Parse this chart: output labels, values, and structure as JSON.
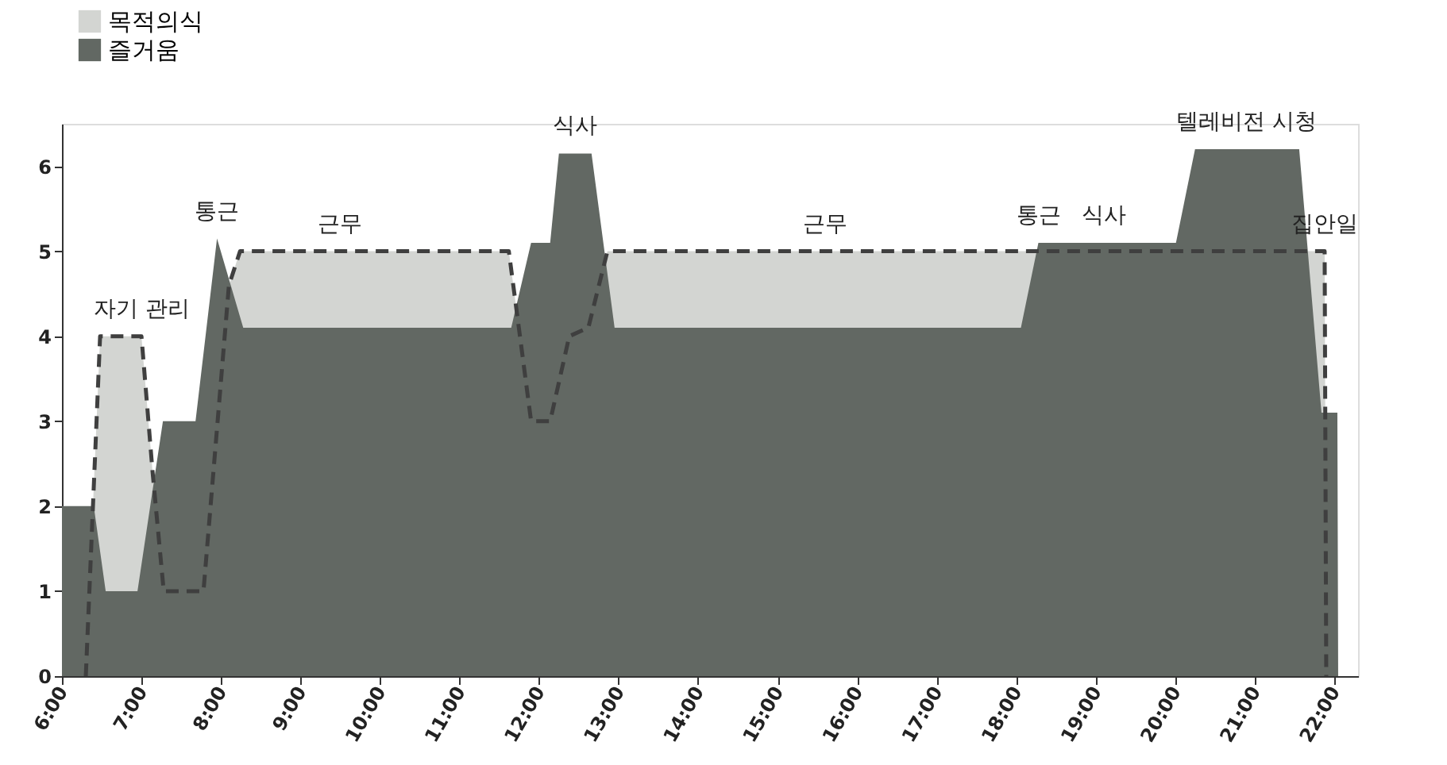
{
  "chart_data": {
    "type": "area",
    "legend": "top left",
    "grid": false,
    "marker": "none",
    "xlim": [
      6,
      22.3
    ],
    "ylim": [
      0,
      6.5
    ],
    "yticks": [
      0,
      1,
      2,
      3,
      4,
      5,
      6
    ],
    "xticks": [
      {
        "value": 6,
        "label": "6:00"
      },
      {
        "value": 7,
        "label": "7:00"
      },
      {
        "value": 8,
        "label": "8:00"
      },
      {
        "value": 9,
        "label": "9:00"
      },
      {
        "value": 10,
        "label": "10:00"
      },
      {
        "value": 11,
        "label": "11:00"
      },
      {
        "value": 12,
        "label": "12:00"
      },
      {
        "value": 13,
        "label": "13:00"
      },
      {
        "value": 14,
        "label": "14:00"
      },
      {
        "value": 15,
        "label": "15:00"
      },
      {
        "value": 16,
        "label": "16:00"
      },
      {
        "value": 17,
        "label": "17:00"
      },
      {
        "value": 18,
        "label": "18:00"
      },
      {
        "value": 19,
        "label": "19:00"
      },
      {
        "value": 20,
        "label": "20:00"
      },
      {
        "value": 21,
        "label": "21:00"
      },
      {
        "value": 22,
        "label": "22:00"
      }
    ],
    "series": [
      {
        "name": "목적의식",
        "color": "#d3d5d2",
        "line_style": "dashed",
        "x": [
          6.3,
          6.48,
          7.0,
          7.14,
          7.28,
          7.78,
          8.1,
          8.24,
          11.62,
          11.69,
          11.9,
          12.14,
          12.38,
          12.62,
          12.86,
          21.88,
          21.9
        ],
        "values": [
          0,
          4,
          4,
          2.4,
          1,
          1,
          4.6,
          5,
          5,
          4.5,
          3,
          3,
          4,
          4.1,
          5,
          5,
          0
        ]
      },
      {
        "name": "즐거움",
        "color": "#626863",
        "line_style": "solid",
        "x": [
          6.0,
          6.4,
          6.55,
          6.95,
          7.27,
          7.68,
          7.95,
          8.28,
          11.65,
          11.9,
          12.14,
          12.25,
          12.66,
          12.95,
          18.06,
          18.28,
          20.01,
          20.25,
          21.56,
          21.84,
          22.04,
          22.05
        ],
        "values": [
          2,
          2,
          1,
          1,
          3,
          3,
          5.15,
          4.1,
          4.1,
          5.1,
          5.1,
          6.15,
          6.15,
          4.1,
          4.1,
          5.1,
          5.1,
          6.2,
          6.2,
          3.1,
          3.1,
          0
        ]
      }
    ],
    "annotations": [
      {
        "text": "자기 관리",
        "x": 7.0,
        "y": 4
      },
      {
        "text": "통근",
        "x": 7.95,
        "y": 5.15
      },
      {
        "text": "근무",
        "x": 9.5,
        "y": 5
      },
      {
        "text": "식사",
        "x": 12.45,
        "y": 6.15
      },
      {
        "text": "근무",
        "x": 15.6,
        "y": 5
      },
      {
        "text": "통근",
        "x": 18.28,
        "y": 5.1
      },
      {
        "text": "식사",
        "x": 19.1,
        "y": 5.1
      },
      {
        "text": "텔레비전 시청",
        "x": 20.9,
        "y": 6.2
      },
      {
        "text": "집안일",
        "x": 21.88,
        "y": 5
      }
    ]
  }
}
